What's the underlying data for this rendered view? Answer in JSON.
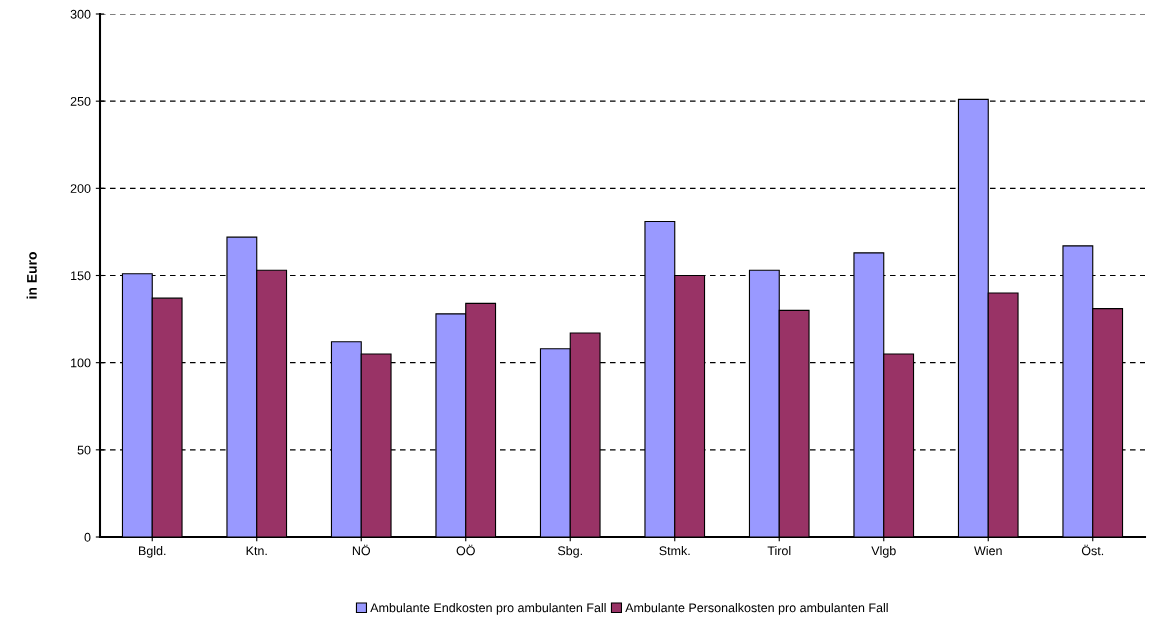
{
  "chart_data": {
    "type": "bar",
    "ylabel": "in Euro",
    "categories": [
      "Bgld.",
      "Ktn.",
      "NÖ",
      "OÖ",
      "Sbg.",
      "Stmk.",
      "Tirol",
      "Vlgb",
      "Wien",
      "Öst."
    ],
    "series": [
      {
        "name": "Ambulante Endkosten pro ambulanten Fall",
        "color": "#9999ff",
        "values": [
          151,
          172,
          112,
          128,
          108,
          181,
          153,
          163,
          251,
          167
        ]
      },
      {
        "name": "Ambulante Personalkosten pro ambulanten Fall",
        "color": "#993366",
        "values": [
          137,
          153,
          105,
          134,
          117,
          150,
          130,
          105,
          140,
          131
        ]
      }
    ],
    "ylim": [
      0,
      300
    ],
    "yticks": [
      0,
      50,
      100,
      150,
      200,
      250,
      300
    ],
    "grid": "y",
    "legend": "bottom"
  }
}
